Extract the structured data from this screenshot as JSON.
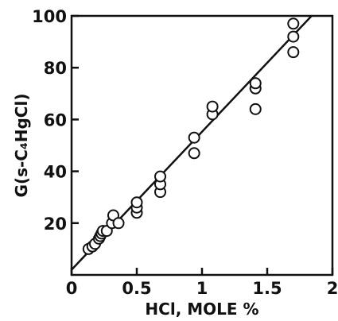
{
  "chart_data": {
    "type": "scatter",
    "title": "",
    "xlabel": "HCl, MOLE %",
    "ylabel": "G(s-C₄HgCl)",
    "xlim": [
      0,
      2
    ],
    "ylim": [
      0,
      100
    ],
    "x_ticks": [
      "0",
      "0.5",
      "1",
      "1.5",
      "2"
    ],
    "y_ticks": [
      "20",
      "40",
      "60",
      "80",
      "100"
    ],
    "x_tick_values": [
      0,
      0.5,
      1,
      1.5,
      2
    ],
    "y_tick_values": [
      20,
      40,
      60,
      80,
      100
    ],
    "grid": false,
    "legend": "none",
    "series": [
      {
        "points": [
          [
            0.13,
            10
          ],
          [
            0.16,
            11
          ],
          [
            0.18,
            12
          ],
          [
            0.21,
            14
          ],
          [
            0.22,
            15
          ],
          [
            0.23,
            16
          ],
          [
            0.24,
            17
          ],
          [
            0.27,
            17
          ],
          [
            0.31,
            20
          ],
          [
            0.32,
            23
          ],
          [
            0.36,
            20
          ],
          [
            0.5,
            24
          ],
          [
            0.5,
            26
          ],
          [
            0.5,
            28
          ],
          [
            0.68,
            32
          ],
          [
            0.68,
            35
          ],
          [
            0.68,
            38
          ],
          [
            0.94,
            47
          ],
          [
            0.94,
            53
          ],
          [
            1.08,
            62
          ],
          [
            1.08,
            65
          ],
          [
            1.41,
            64
          ],
          [
            1.41,
            72
          ],
          [
            1.41,
            74
          ],
          [
            1.7,
            86
          ],
          [
            1.7,
            92
          ],
          [
            1.7,
            97
          ]
        ]
      }
    ],
    "fit_line": {
      "x": [
        0,
        1.84
      ],
      "y": [
        2,
        100
      ]
    }
  }
}
